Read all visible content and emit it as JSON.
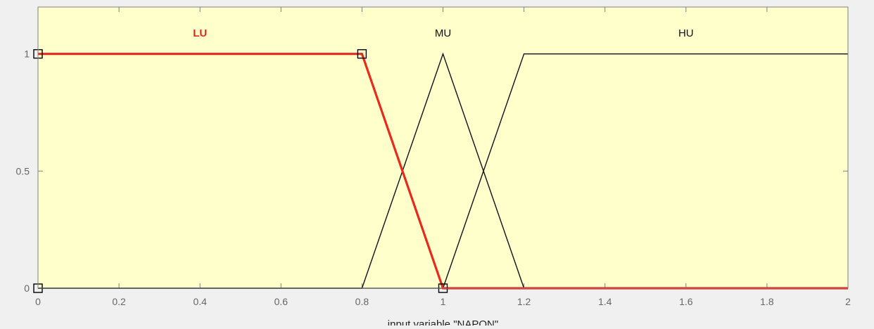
{
  "chart_data": {
    "type": "line",
    "xlabel": "input variable \"NAPON\"",
    "xlim": [
      0,
      2
    ],
    "ylim": [
      0,
      1.2
    ],
    "xticks": [
      0,
      0.2,
      0.4,
      0.6,
      0.8,
      1,
      1.2,
      1.4,
      1.6,
      1.8,
      2
    ],
    "xtick_labels": [
      "0",
      "0.2",
      "0.4",
      "0.6",
      "0.8",
      "1",
      "1.2",
      "1.4",
      "1.6",
      "1.8",
      "2"
    ],
    "yticks": [
      0,
      0.5,
      1
    ],
    "ytick_labels": [
      "0",
      "0.5",
      "1"
    ],
    "grid": false,
    "colors": {
      "plot_background": "#ffffcc",
      "selected": "#e8291c",
      "default": "#111111",
      "axis": "#808080"
    },
    "series": [
      {
        "name": "LU",
        "selected": true,
        "points": [
          [
            0,
            1
          ],
          [
            0.8,
            1
          ],
          [
            1,
            0
          ],
          [
            2,
            0
          ]
        ],
        "vertices": [
          [
            0,
            1
          ],
          [
            0.8,
            1
          ],
          [
            1,
            0
          ]
        ],
        "label_x": 0.4
      },
      {
        "name": "MU",
        "selected": false,
        "points": [
          [
            0,
            0
          ],
          [
            0.8,
            0
          ],
          [
            1,
            1
          ],
          [
            1.2,
            0
          ],
          [
            2,
            0
          ]
        ],
        "label_x": 1.0
      },
      {
        "name": "HU",
        "selected": false,
        "points": [
          [
            0,
            0
          ],
          [
            1,
            0
          ],
          [
            1.2,
            1
          ],
          [
            2,
            1
          ]
        ],
        "label_x": 1.6
      }
    ],
    "extra_markers": [
      [
        0,
        0
      ]
    ]
  }
}
